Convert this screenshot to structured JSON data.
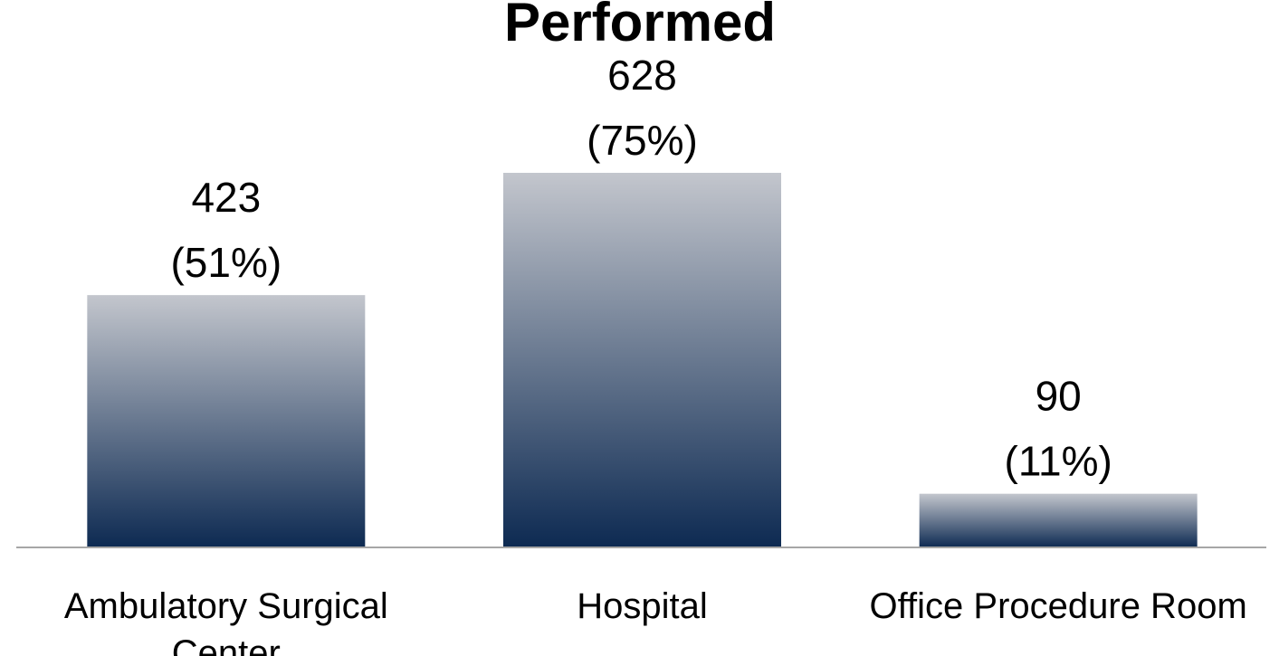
{
  "chart_data": {
    "type": "bar",
    "title": "Performed",
    "categories": [
      "Ambulatory Surgical Center",
      "Hospital",
      "Office Procedure Room"
    ],
    "values": [
      423,
      628,
      90
    ],
    "value_labels": [
      [
        "423",
        "(51%)"
      ],
      [
        "628",
        "(75%)"
      ],
      [
        "90",
        "(11%)"
      ]
    ],
    "color": "#0d2a52",
    "gradient_top": "#c3c6cd",
    "axis_color": "#a6a6a6"
  }
}
